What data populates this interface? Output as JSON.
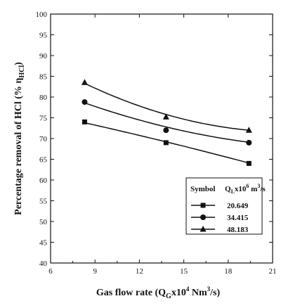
{
  "chart_data": {
    "type": "scatter",
    "xlabel": {
      "main": "Gas flow rate (Q",
      "sub1": "G",
      "mid": "x10",
      "sup": "4",
      "tail": " Nm",
      "sup2": "3",
      "end": "/s)"
    },
    "ylabel": {
      "main": "Percentage removal of HCl   (% η",
      "sub": "HCl",
      "end": ")"
    },
    "xlim": [
      6,
      21
    ],
    "ylim": [
      40,
      100
    ],
    "xticks": [
      "6",
      "9",
      "12",
      "15",
      "18",
      "21"
    ],
    "yticks": [
      "40",
      "45",
      "50",
      "55",
      "60",
      "65",
      "70",
      "75",
      "80",
      "85",
      "90",
      "95",
      "100"
    ],
    "legend": {
      "title_left": "Symbol",
      "title_right_main": "Q",
      "title_right_sub": "L",
      "title_right_mid": "x10",
      "title_right_sup": "6",
      "title_right_tail": " m",
      "title_right_sup2": "3",
      "title_right_end": "/s",
      "position": "lower-right"
    },
    "series": [
      {
        "name": "20.649",
        "marker": "square",
        "x": [
          8.3,
          13.8,
          19.4
        ],
        "y": [
          74,
          69,
          64
        ]
      },
      {
        "name": "34.415",
        "marker": "circle",
        "x": [
          8.3,
          13.8,
          19.4
        ],
        "y": [
          78.8,
          72,
          69
        ]
      },
      {
        "name": "48.183",
        "marker": "triangle",
        "x": [
          8.3,
          13.8,
          19.4
        ],
        "y": [
          83.5,
          75.2,
          72
        ]
      }
    ],
    "fit_curves": [
      {
        "series": "20.649",
        "x": [
          8.3,
          13.8,
          19.4
        ],
        "y": [
          73.8,
          69.2,
          64.1
        ]
      },
      {
        "series": "34.415",
        "x": [
          8.3,
          13.8,
          19.4
        ],
        "y": [
          78.6,
          72.8,
          69.1
        ]
      },
      {
        "series": "48.183",
        "x": [
          8.3,
          13.8,
          19.4
        ],
        "y": [
          83.3,
          75.8,
          72.0
        ]
      }
    ],
    "grid": false
  }
}
